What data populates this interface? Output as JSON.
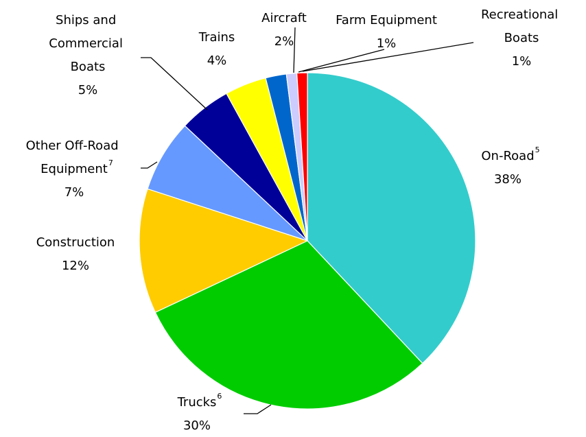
{
  "chart_data": {
    "type": "pie",
    "categories": [
      "On-Road",
      "Trucks",
      "Construction",
      "Other Off-Road Equipment",
      "Ships and Commercial Boats",
      "Trains",
      "Aircraft",
      "Farm Equipment",
      "Recreational Boats"
    ],
    "footnotes": [
      "5",
      "6",
      null,
      "7",
      null,
      null,
      null,
      null,
      null
    ],
    "values": [
      38,
      30,
      12,
      7,
      5,
      4,
      2,
      1,
      1
    ],
    "value_labels": [
      "38%",
      "30%",
      "12%",
      "7%",
      "5%",
      "4%",
      "2%",
      "1%",
      "1%"
    ],
    "colors": [
      "#33cccc",
      "#00cc00",
      "#ffcc00",
      "#6699ff",
      "#000099",
      "#ffff00",
      "#0066cc",
      "#ccccff",
      "#ff0000"
    ]
  }
}
